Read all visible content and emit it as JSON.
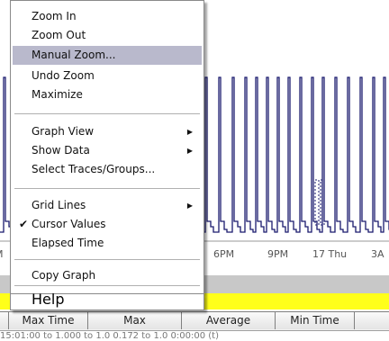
{
  "menu": {
    "items": [
      {
        "label": "Zoom In",
        "has_submenu": false,
        "checked": false,
        "highlighted": false
      },
      {
        "label": "Zoom Out",
        "has_submenu": false,
        "checked": false,
        "highlighted": false
      },
      {
        "label": "Manual Zoom...",
        "has_submenu": false,
        "checked": false,
        "highlighted": true
      },
      {
        "label": "Undo Zoom",
        "has_submenu": false,
        "checked": false,
        "highlighted": false
      },
      {
        "label": "Maximize",
        "has_submenu": false,
        "checked": false,
        "highlighted": false
      },
      {
        "label": "Graph View",
        "has_submenu": true,
        "checked": false,
        "highlighted": false
      },
      {
        "label": "Show Data",
        "has_submenu": true,
        "checked": false,
        "highlighted": false
      },
      {
        "label": "Select Traces/Groups...",
        "has_submenu": false,
        "checked": false,
        "highlighted": false
      },
      {
        "label": "Grid Lines",
        "has_submenu": true,
        "checked": false,
        "highlighted": false
      },
      {
        "label": "Cursor Values",
        "has_submenu": false,
        "checked": true,
        "highlighted": false
      },
      {
        "label": "Elapsed Time",
        "has_submenu": false,
        "checked": false,
        "highlighted": false
      },
      {
        "label": "Copy Graph",
        "has_submenu": false,
        "checked": false,
        "highlighted": false
      },
      {
        "label": "Help",
        "has_submenu": false,
        "checked": false,
        "highlighted": false
      }
    ],
    "submenu_icon": "triangle-right-icon",
    "check_icon": "checkmark-icon"
  },
  "graph": {
    "x_tick_labels": [
      "6PM",
      "9PM",
      "17 Thu",
      "3A"
    ],
    "trace_color": "#1a1a6e"
  },
  "stats_table": {
    "headers": [
      "Max Time",
      "Max",
      "Average",
      "Min Time"
    ],
    "first_row_partial": "15:01:00 to  1.000  to 1.0   0.172  to 1.0  0:00:00 (t)"
  },
  "colors": {
    "highlight": "#b9b9cc",
    "status_yellow": "#ffff1a",
    "band_gray": "#c8c8c8"
  }
}
